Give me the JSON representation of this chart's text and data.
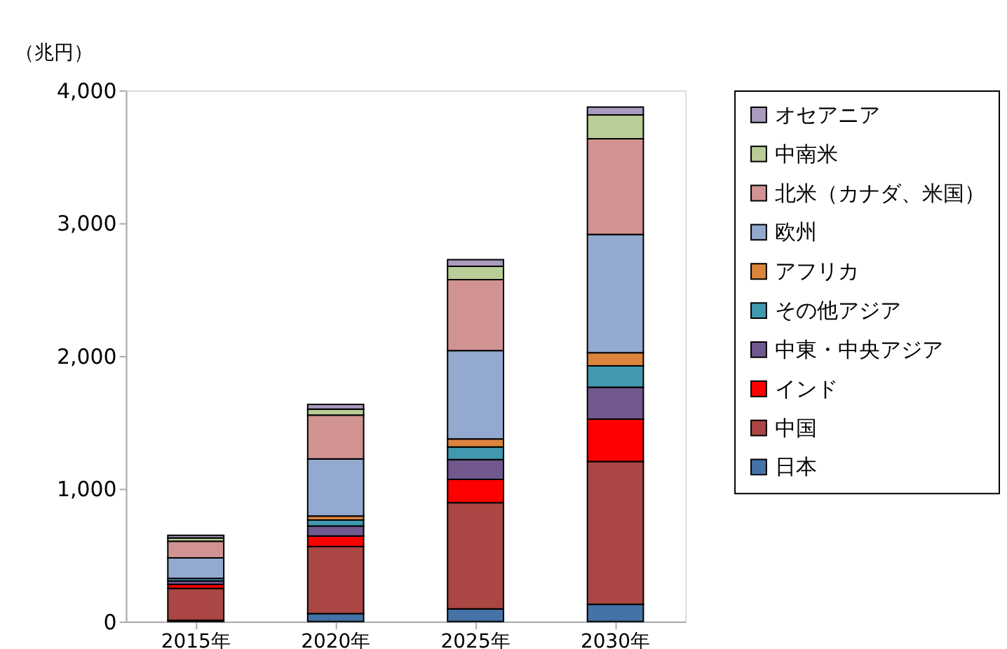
{
  "chart_data": {
    "type": "bar",
    "stacked": true,
    "ylabel": "（兆円）",
    "categories": [
      "2015年",
      "2020年",
      "2025年",
      "2030年"
    ],
    "series": [
      {
        "name": "日本",
        "color": "#4572a7",
        "values": [
          10,
          60,
          95,
          130
        ]
      },
      {
        "name": "中国",
        "color": "#aa4643",
        "values": [
          240,
          505,
          800,
          1075
        ]
      },
      {
        "name": "インド",
        "color": "#ff0000",
        "values": [
          30,
          80,
          175,
          320
        ]
      },
      {
        "name": "中東・中央アジア",
        "color": "#71588f",
        "values": [
          25,
          75,
          150,
          240
        ]
      },
      {
        "name": "その他アジア",
        "color": "#4198af",
        "values": [
          20,
          45,
          95,
          160
        ]
      },
      {
        "name": "アフリカ",
        "color": "#db843d",
        "values": [
          null,
          30,
          60,
          100
        ]
      },
      {
        "name": "欧州",
        "color": "#93a9cf",
        "values": [
          155,
          430,
          665,
          890
        ]
      },
      {
        "name": "北米（カナダ、米国）",
        "color": "#d19392",
        "values": [
          125,
          330,
          535,
          720
        ]
      },
      {
        "name": "中南米",
        "color": "#b9cd96",
        "values": [
          25,
          45,
          100,
          180
        ]
      },
      {
        "name": "オセアニア",
        "color": "#a99bbd",
        "values": [
          20,
          35,
          50,
          60
        ]
      }
    ],
    "ylim": [
      0,
      4000
    ],
    "yticks": [
      0,
      {
        "value": 1000,
        "label": "1,000"
      },
      {
        "value": 2000,
        "label": "2,000"
      },
      {
        "value": 3000,
        "label": "3,000"
      },
      {
        "value": 4000,
        "label": "4,000"
      }
    ],
    "grid": false,
    "legend": "right"
  }
}
